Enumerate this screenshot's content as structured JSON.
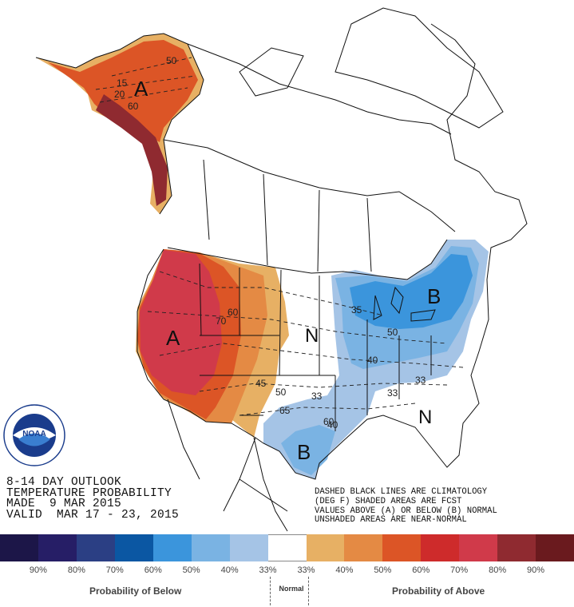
{
  "outlook": {
    "line1": "8-14 DAY OUTLOOK",
    "line2": "TEMPERATURE PROBABILITY",
    "line3": "MADE  9 MAR 2015",
    "line4": "VALID  MAR 17 - 23, 2015"
  },
  "key_text": {
    "line1": "DASHED BLACK LINES ARE CLIMATOLOGY",
    "line2": "(DEG F) SHADED AREAS ARE FCST",
    "line3": "VALUES ABOVE (A) OR BELOW (B) NORMAL",
    "line4": "UNSHADED AREAS ARE NEAR-NORMAL"
  },
  "map_labels": {
    "above": "A",
    "below": "B",
    "near_normal": "N",
    "climatology": [
      "50",
      "15",
      "20",
      "60",
      "70",
      "60",
      "45",
      "50",
      "65",
      "33",
      "60",
      "40",
      "35",
      "50",
      "40",
      "33",
      "33"
    ]
  },
  "legend": {
    "colors": [
      "#1c1648",
      "#261e66",
      "#2b3f84",
      "#0b57a3",
      "#3b95dc",
      "#7ab3e3",
      "#a5c4e6",
      "#ffffff",
      "#e7b064",
      "#e48a44",
      "#dc5526",
      "#ce2b2b",
      "#d03a4a",
      "#8f2a30",
      "#6a1a1e"
    ],
    "percent_labels": [
      "90%",
      "80%",
      "70%",
      "60%",
      "50%",
      "40%",
      "33%",
      "33%",
      "40%",
      "50%",
      "60%",
      "70%",
      "80%",
      "90%"
    ],
    "below_caption": "Probability of Below",
    "normal_caption": "Normal",
    "above_caption": "Probability of Above"
  },
  "logo": {
    "text": "NOAA",
    "ring_text": "NATIONAL OCEANIC AND ATMOSPHERIC ADMINISTRATION",
    "bottom_text": "U.S. DEPARTMENT OF COMMERCE"
  }
}
